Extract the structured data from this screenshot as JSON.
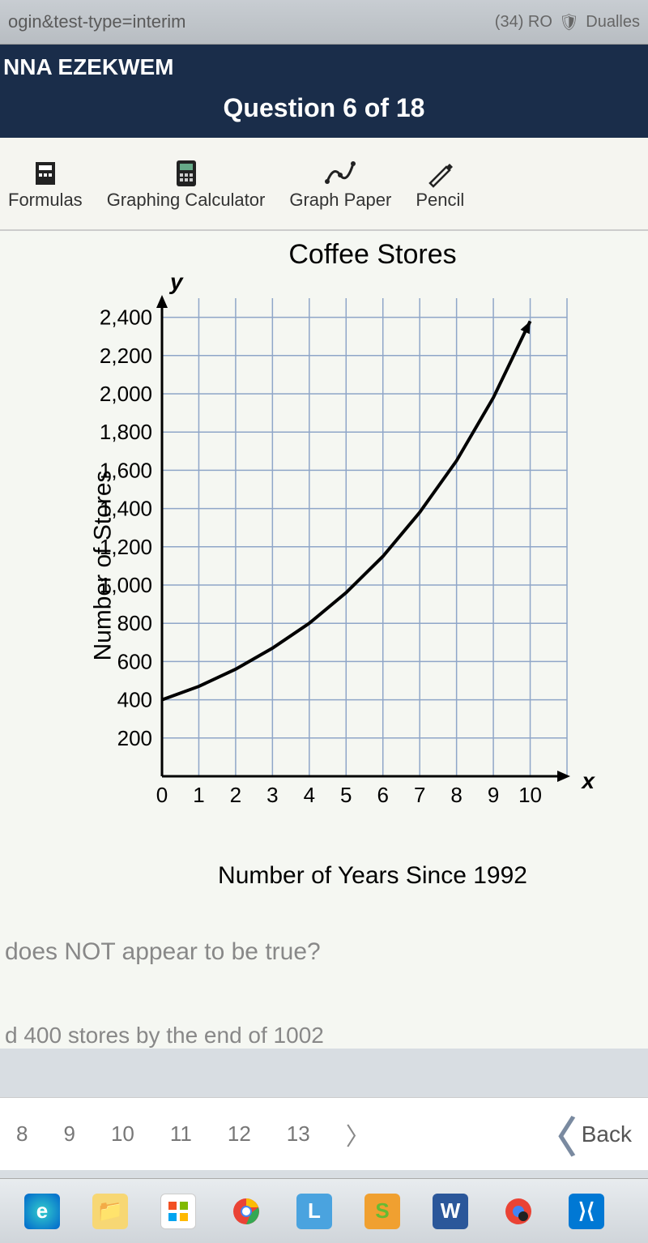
{
  "browser": {
    "url_fragment": "ogin&test-type=interim",
    "tab_badge": "(34) RO",
    "tab_text": "Dualles"
  },
  "header": {
    "student_name": "NNA EZEKWEM",
    "question_label": "Question 6 of 18"
  },
  "toolbar": {
    "formulas": "Formulas",
    "graphing": "Graphing Calculator",
    "graph_paper": "Graph Paper",
    "pencil": "Pencil"
  },
  "chart": {
    "title": "Coffee Stores",
    "type": "line",
    "ylabel": "Number of Stores",
    "xlabel": "Number of Years Since 1992",
    "y_letter": "y",
    "x_letter": "x",
    "x_ticks": [
      0,
      1,
      2,
      3,
      4,
      5,
      6,
      7,
      8,
      9,
      10
    ],
    "y_ticks": [
      200,
      400,
      600,
      800,
      "1,000",
      "1,200",
      "1,400",
      "1,600",
      "1,800",
      "2,000",
      "2,200",
      "2,400"
    ],
    "xlim": [
      0,
      11
    ],
    "ylim": [
      0,
      2500
    ],
    "grid_color": "#8fa6c8",
    "axis_color": "#000000",
    "line_color": "#000000",
    "line_width": 4,
    "background_color": "#f5f7f2",
    "data_points": [
      {
        "x": 0,
        "y": 400
      },
      {
        "x": 1,
        "y": 470
      },
      {
        "x": 2,
        "y": 560
      },
      {
        "x": 3,
        "y": 670
      },
      {
        "x": 4,
        "y": 800
      },
      {
        "x": 5,
        "y": 960
      },
      {
        "x": 6,
        "y": 1150
      },
      {
        "x": 7,
        "y": 1380
      },
      {
        "x": 8,
        "y": 1650
      },
      {
        "x": 9,
        "y": 1980
      },
      {
        "x": 10,
        "y": 2380
      }
    ]
  },
  "question": {
    "stem_fragment": "does NOT appear to be true?",
    "answer_fragment": "d 400 stores by the end of 1002"
  },
  "pager": {
    "items": [
      "8",
      "9",
      "10",
      "11",
      "12",
      "13"
    ],
    "back_label": "Back"
  },
  "taskbar": {
    "icons": [
      "edge",
      "explorer",
      "store",
      "chrome",
      "L",
      "S",
      "W",
      "chrome2",
      "vscode"
    ]
  }
}
